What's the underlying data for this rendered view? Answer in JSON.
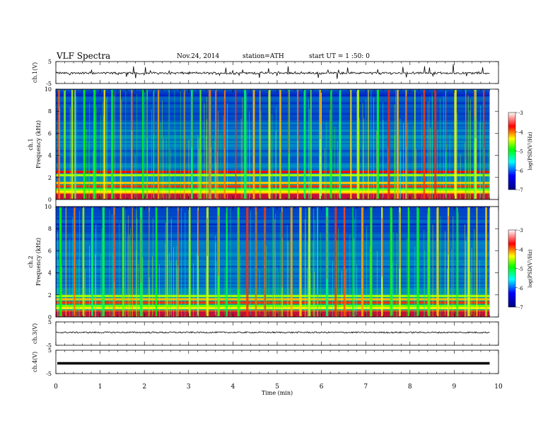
{
  "header": {
    "title": "VLF  Spectra",
    "date": "Nov.24, 2014",
    "station": "station=ATH",
    "start": "start  UT  =   1  :50: 0"
  },
  "colors": {
    "colormap": [
      "#000080",
      "#0000ff",
      "#00ffff",
      "#00ff00",
      "#ffff00",
      "#ff0000",
      "#ffffff"
    ],
    "trace": "#000000"
  },
  "chart_data": [
    {
      "type": "line",
      "name": "ch1-waveform",
      "ylabel": "ch.1(V)",
      "ylim": [
        -5,
        5
      ],
      "yticks": [
        5,
        -5
      ],
      "xlim": [
        0,
        10
      ],
      "description_level": "broadband noise roughly between -1.5 and 1 V with frequent spikes up to about 3 V",
      "y_noise_range": [
        -1.5,
        1.0
      ],
      "x_end_min": 9.8
    },
    {
      "type": "heatmap",
      "name": "ch1-spectrogram",
      "ylabel": "ch.1 Frequency (kHz)",
      "xlim": [
        0,
        10
      ],
      "ylim": [
        0,
        10
      ],
      "yticks": [
        0,
        2,
        4,
        6,
        8,
        10
      ],
      "x_end_min": 9.8,
      "colorbar_label": "log(PSD(V²/Hz)",
      "colorbar_range": [
        -7,
        -3
      ],
      "colorbar_ticks": [
        "-3",
        "-4",
        "-5",
        "-6",
        "-7"
      ],
      "strong_bands_khz": [
        0.4,
        0.55,
        0.7,
        0.9,
        1.2,
        1.5,
        2.2,
        2.5
      ],
      "sferic_line_min": [
        0.05,
        0.18,
        0.35,
        0.42,
        0.62,
        0.85,
        1.08,
        1.25,
        1.45,
        1.7,
        1.95,
        2.05,
        2.2,
        2.3,
        2.55,
        2.9,
        3.05,
        3.25,
        3.45,
        3.6,
        3.8,
        4.05,
        4.25,
        4.45,
        4.6,
        4.8,
        5.05,
        5.25,
        5.45,
        5.6,
        5.75,
        5.95,
        6.2,
        6.4,
        6.65,
        6.8,
        7.05,
        7.25,
        7.5,
        7.7,
        7.9,
        8.1,
        8.3,
        8.55,
        8.8,
        9.0,
        9.25,
        9.45,
        9.65
      ]
    },
    {
      "type": "heatmap",
      "name": "ch2-spectrogram",
      "ylabel": "ch.2 Frequency (kHz)",
      "xlim": [
        0,
        10
      ],
      "ylim": [
        0,
        10
      ],
      "yticks": [
        0,
        2,
        4,
        6,
        8,
        10
      ],
      "x_end_min": 9.8,
      "colorbar_label": "log(PSD(V²/Hz)",
      "colorbar_range": [
        -7,
        -3
      ],
      "colorbar_ticks": [
        "-3",
        "-4",
        "-5",
        "-6",
        "-7"
      ],
      "strong_bands_khz": [
        0.3,
        0.5,
        0.8,
        1.0,
        1.3,
        1.6,
        1.9
      ],
      "sferic_line_min": [
        0.08,
        0.22,
        0.4,
        0.6,
        0.8,
        1.05,
        1.3,
        1.5,
        1.72,
        1.9,
        2.1,
        2.25,
        2.5,
        2.75,
        3.0,
        3.2,
        3.4,
        3.65,
        3.85,
        4.1,
        4.3,
        4.5,
        4.7,
        4.9,
        5.1,
        5.3,
        5.5,
        5.7,
        5.9,
        6.1,
        6.3,
        6.5,
        6.7,
        6.9,
        7.1,
        7.35,
        7.55,
        7.75,
        7.95,
        8.15,
        8.4,
        8.6,
        8.85,
        9.05,
        9.3,
        9.5,
        9.7
      ]
    },
    {
      "type": "line",
      "name": "ch3-waveform",
      "ylabel": "ch.3(V)",
      "ylim": [
        -5,
        5
      ],
      "yticks": [
        5,
        -5
      ],
      "xlim": [
        0,
        10
      ],
      "y_level": 0.5,
      "y_noise_range": [
        0.2,
        0.8
      ],
      "x_end_min": 9.8
    },
    {
      "type": "line",
      "name": "ch4-waveform",
      "ylabel": "ch.4(V)",
      "ylim": [
        -5,
        5
      ],
      "yticks": [
        5,
        -5
      ],
      "xlim": [
        0,
        10
      ],
      "y_level": -0.6,
      "trace_style": "thick-flat",
      "x_end_min": 9.8,
      "xlabel": "Time  (min)",
      "xticks": [
        0,
        1,
        2,
        3,
        4,
        5,
        6,
        7,
        8,
        9,
        10
      ]
    }
  ]
}
